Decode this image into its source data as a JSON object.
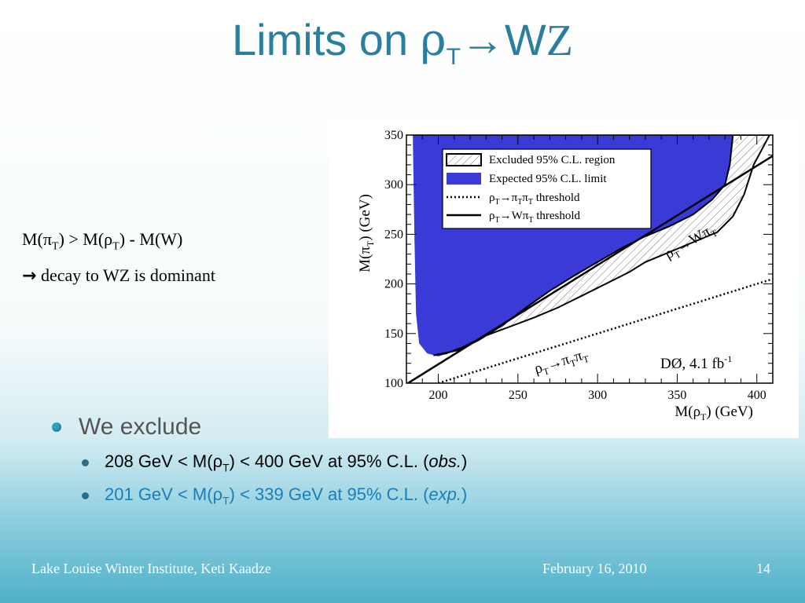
{
  "slide": {
    "title_prefix": "Limits on ",
    "title_rho": "ρ",
    "title_sub": "T",
    "title_arrow": "→W",
    "title_z": "Z",
    "relation": {
      "line1": [
        "M(π",
        "T",
        ") > M(ρ",
        "T",
        ") - M(W)"
      ],
      "arrow": "",
      "line2": " decay to WZ is dominant"
    },
    "bullets": {
      "main": "We exclude",
      "obs": {
        "a": "208 GeV < M(ρ",
        "sub": "T",
        "b": ") < 400 GeV at 95% C.L. (",
        "it": "obs.",
        "c": ")",
        "color": "#000000"
      },
      "exp": {
        "a": "201 GeV < M(ρ",
        "sub": "T",
        "b": ") < 339 GeV at 95% C.L. (",
        "it": "exp.",
        "c": ")",
        "color": "#1a7fb8"
      }
    },
    "footer": {
      "left": "Lake Louise Winter Institute, Keti Kaadze",
      "date": "February 16, 2010",
      "page": "14"
    },
    "title_color": "#2a7f9e"
  },
  "chart_data": {
    "type": "area",
    "xlim": [
      180,
      410
    ],
    "ylim": [
      100,
      350
    ],
    "x_ticks": [
      "200",
      "250",
      "300",
      "350",
      "400"
    ],
    "y_ticks": [
      "100",
      "150",
      "200",
      "250",
      "300",
      "350"
    ],
    "xlabel": {
      "a": "M(ρ",
      "sub": "T",
      "b": ") (GeV)"
    },
    "ylabel": {
      "a": "M(π",
      "sub": "T",
      "b": ") (GeV)"
    },
    "expected_color": "#3a3ad6",
    "legend": [
      {
        "label": "Excluded 95% C.L. region"
      },
      {
        "label": "Expected 95% C.L. limit"
      },
      {
        "label_a": "ρ",
        "s1": "T",
        "label_b": "→π",
        "s2": "T",
        "label_c": "π",
        "s3": "T",
        "label_d": " threshold"
      },
      {
        "label_a": "ρ",
        "s1": "T",
        "label_b": "→Wπ",
        "s2": "T",
        "label_d": " threshold"
      }
    ],
    "label_wpi": {
      "a": "ρ",
      "s1": "T",
      "b": "→Wπ",
      "s2": "T"
    },
    "label_pipi": {
      "a": "ρ",
      "s1": "T",
      "b": "→π",
      "s2": "T",
      "c": "π",
      "s3": "T"
    },
    "experiment_a": "DØ, 4.1 fb",
    "experiment_sup": "-1",
    "expected_region": [
      [
        183,
        350
      ],
      [
        385,
        350
      ],
      [
        383,
        320
      ],
      [
        380,
        300
      ],
      [
        372,
        285
      ],
      [
        360,
        270
      ],
      [
        345,
        258
      ],
      [
        330,
        248
      ],
      [
        315,
        236
      ],
      [
        300,
        222
      ],
      [
        285,
        208
      ],
      [
        270,
        193
      ],
      [
        255,
        176
      ],
      [
        240,
        158
      ],
      [
        225,
        143
      ],
      [
        212,
        133
      ],
      [
        200,
        127
      ],
      [
        193,
        130
      ],
      [
        188,
        140
      ],
      [
        186,
        170
      ],
      [
        185,
        250
      ],
      [
        184,
        350
      ]
    ],
    "excluded_region": [
      [
        197,
        128
      ],
      [
        205,
        130
      ],
      [
        215,
        136
      ],
      [
        230,
        148
      ],
      [
        245,
        157
      ],
      [
        260,
        166
      ],
      [
        275,
        176
      ],
      [
        290,
        188
      ],
      [
        305,
        200
      ],
      [
        320,
        212
      ],
      [
        330,
        222
      ],
      [
        345,
        232
      ],
      [
        360,
        242
      ],
      [
        375,
        252
      ],
      [
        385,
        268
      ],
      [
        392,
        290
      ],
      [
        398,
        320
      ],
      [
        408,
        350
      ],
      [
        385,
        350
      ],
      [
        383,
        320
      ],
      [
        380,
        300
      ],
      [
        372,
        285
      ],
      [
        360,
        270
      ],
      [
        345,
        258
      ],
      [
        330,
        248
      ],
      [
        315,
        236
      ],
      [
        300,
        222
      ],
      [
        285,
        208
      ],
      [
        270,
        193
      ],
      [
        255,
        176
      ],
      [
        240,
        158
      ],
      [
        225,
        143
      ],
      [
        212,
        133
      ]
    ],
    "wpi_threshold": [
      [
        174.4,
        93.4
      ],
      [
        410,
        329
      ]
    ],
    "pipi_threshold": [
      [
        200,
        100
      ],
      [
        410,
        205
      ]
    ]
  }
}
